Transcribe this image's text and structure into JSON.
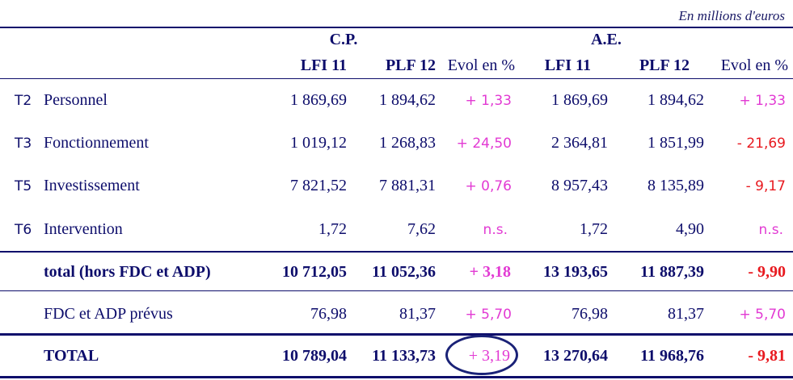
{
  "unit_note": "En millions d'euros",
  "groups": {
    "cp": "C.P.",
    "ae": "A.E."
  },
  "col_headers": {
    "lfi": "LFI 11",
    "plf": "PLF 12",
    "evol": "Evol en %"
  },
  "rows": [
    {
      "code": "T2",
      "label": "Personnel",
      "cp_lfi": "1 869,69",
      "cp_plf": "1 894,62",
      "cp_evol": "+ 1,33",
      "ae_lfi": "1 869,69",
      "ae_plf": "1 894,62",
      "ae_evol": "+ 1,33"
    },
    {
      "code": "T3",
      "label": "Fonctionnement",
      "cp_lfi": "1 019,12",
      "cp_plf": "1 268,83",
      "cp_evol": "+ 24,50",
      "ae_lfi": "2 364,81",
      "ae_plf": "1 851,99",
      "ae_evol": "- 21,69"
    },
    {
      "code": "T5",
      "label": "Investissement",
      "cp_lfi": "7 821,52",
      "cp_plf": "7 881,31",
      "cp_evol": "+ 0,76",
      "ae_lfi": "8 957,43",
      "ae_plf": "8 135,89",
      "ae_evol": "- 9,17"
    },
    {
      "code": "T6",
      "label": "Intervention",
      "cp_lfi": "1,72",
      "cp_plf": "7,62",
      "cp_evol": "n.s.",
      "ae_lfi": "1,72",
      "ae_plf": "4,90",
      "ae_evol": "n.s."
    }
  ],
  "subtotal": {
    "label": "total (hors FDC et ADP)",
    "cp_lfi": "10 712,05",
    "cp_plf": "11 052,36",
    "cp_evol": "+ 3,18",
    "ae_lfi": "13 193,65",
    "ae_plf": "11 887,39",
    "ae_evol": "- 9,90"
  },
  "fdc": {
    "label": "FDC et ADP prévus",
    "cp_lfi": "76,98",
    "cp_plf": "81,37",
    "cp_evol": "+ 5,70",
    "ae_lfi": "76,98",
    "ae_plf": "81,37",
    "ae_evol": "+ 5,70"
  },
  "total": {
    "label": "TOTAL",
    "cp_lfi": "10 789,04",
    "cp_plf": "11 133,73",
    "cp_evol": "+ 3,19",
    "ae_lfi": "13 270,64",
    "ae_plf": "11 968,76",
    "ae_evol": "- 9,81"
  },
  "colors": {
    "text": "#0d0d6b",
    "positive": "#e23ad3",
    "negative": "#e8191f"
  }
}
